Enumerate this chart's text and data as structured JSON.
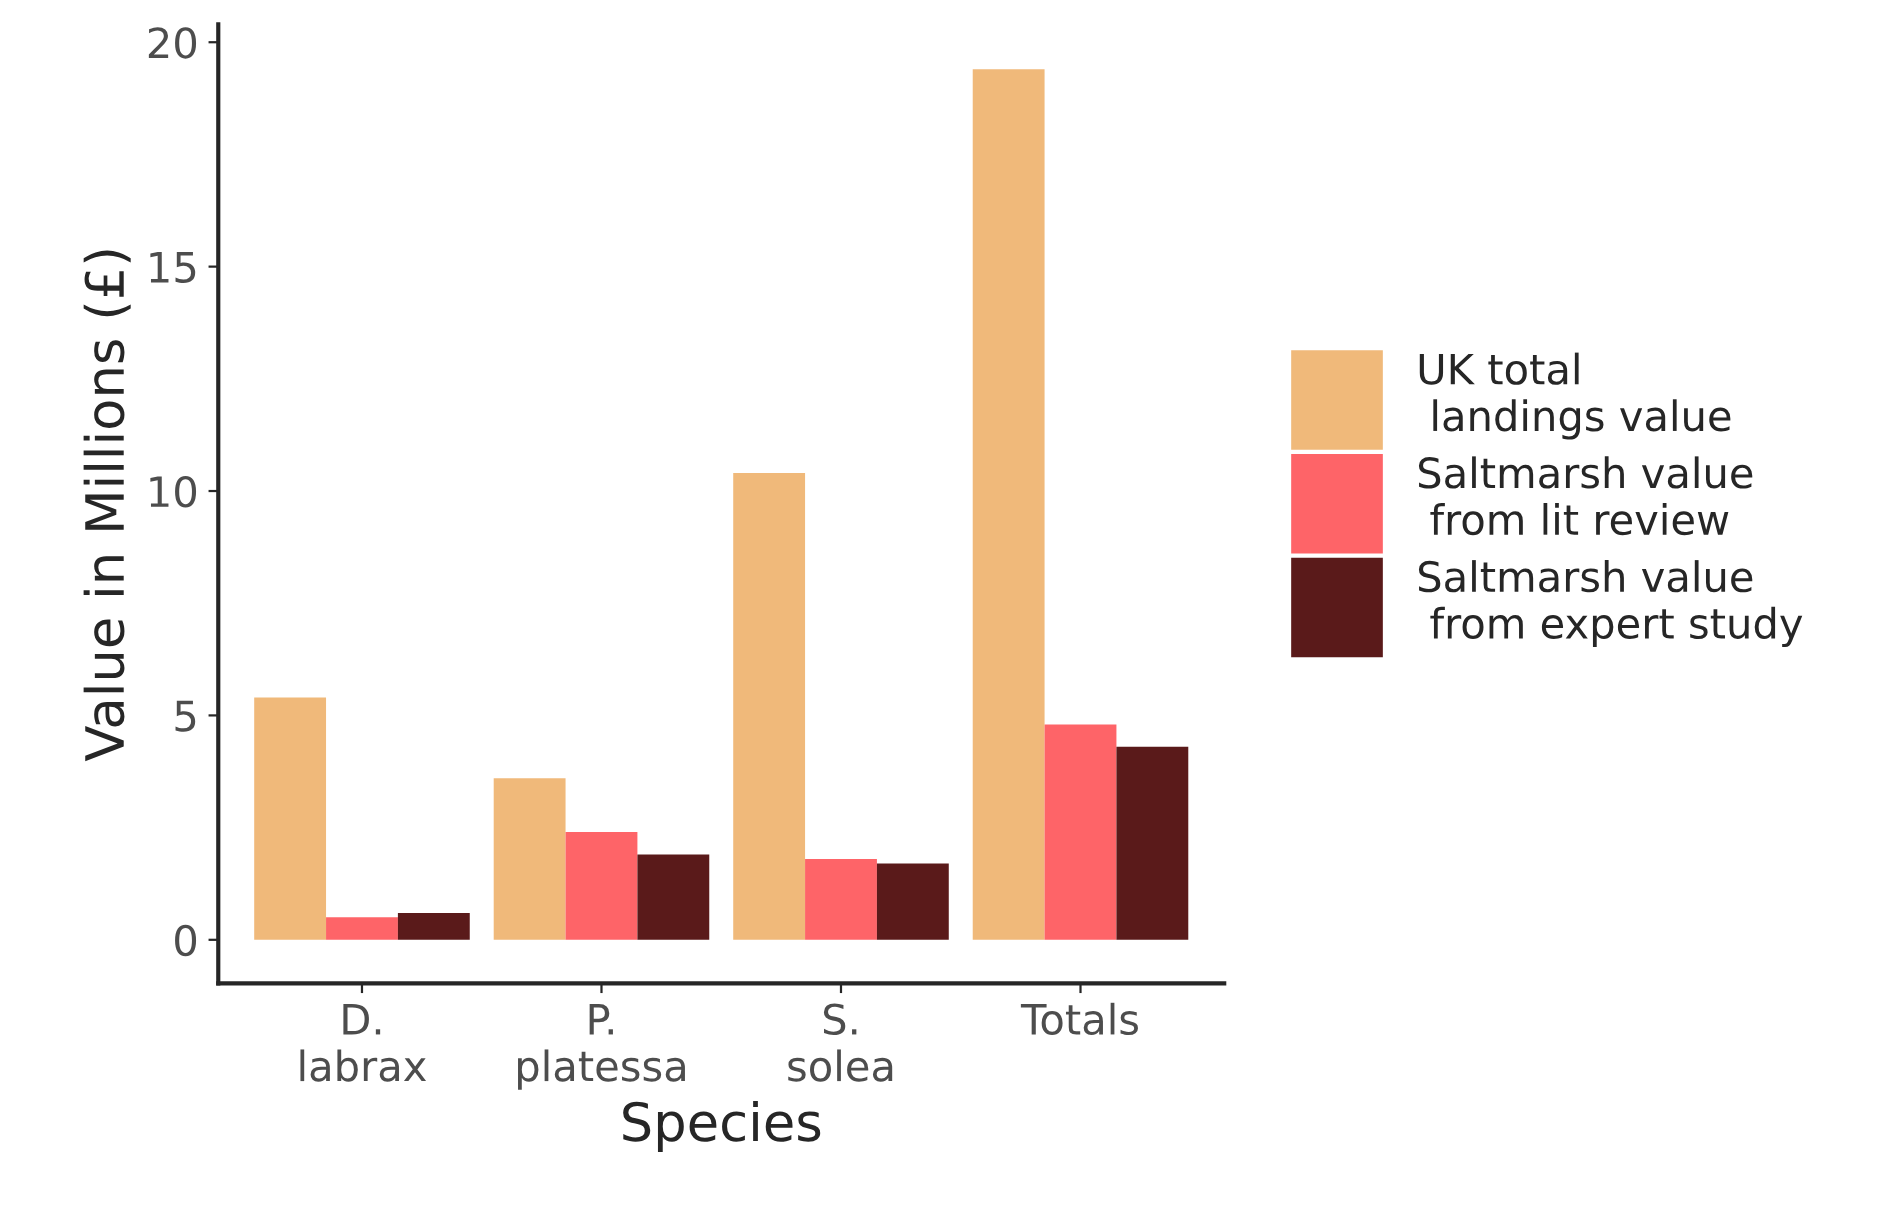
{
  "chart_data": {
    "type": "bar",
    "xlabel": "Species",
    "ylabel": "Value in Millions (£)",
    "categories": [
      "D.\nlabrax",
      "P.\nplatessa",
      "S.\nsolea",
      "Totals"
    ],
    "series": [
      {
        "name": "UK total\n landings value",
        "color": "#f0b97a",
        "values": [
          5.4,
          3.6,
          10.4,
          19.4
        ]
      },
      {
        "name": "Saltmarsh value\n from lit review",
        "color": "#fe6468",
        "values": [
          0.5,
          2.4,
          1.8,
          4.8
        ]
      },
      {
        "name": "Saltmarsh value\n from expert study",
        "color": "#5a1a1a",
        "values": [
          0.6,
          1.9,
          1.7,
          4.3
        ]
      }
    ],
    "ylim": [
      -0.97,
      20.4
    ],
    "yticks": [
      0,
      5,
      10,
      15,
      20
    ],
    "grid": false,
    "legend": "right"
  }
}
